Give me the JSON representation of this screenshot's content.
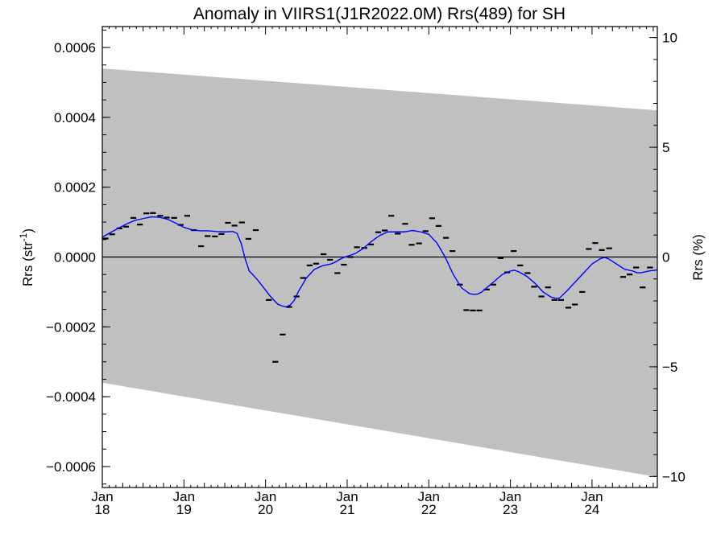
{
  "chart_data": {
    "type": "line",
    "title": "Anomaly in VIIRS1(J1R2022.0M) Rrs(489) for SH",
    "ylabel_left": "Rrs (str",
    "ylabel_left_sup": "-1",
    "ylabel_left_close": ")",
    "ylabel_right": "Rrs (%)",
    "ylim_left": [
      -0.00066,
      0.00066
    ],
    "ylim_right": [
      -10.5,
      10.5
    ],
    "xlim": [
      2018.0,
      2024.8
    ],
    "left_ticks": [
      {
        "value": 0.0006,
        "label": "0.0006"
      },
      {
        "value": 0.0004,
        "label": "0.0004"
      },
      {
        "value": 0.0002,
        "label": "0.0002"
      },
      {
        "value": 0.0,
        "label": "0.0000"
      },
      {
        "value": -0.0002,
        "label": "−0.0002"
      },
      {
        "value": -0.0004,
        "label": "−0.0004"
      },
      {
        "value": -0.0006,
        "label": "−0.0006"
      }
    ],
    "right_ticks": [
      {
        "value": 10,
        "label": "10"
      },
      {
        "value": 5,
        "label": "5"
      },
      {
        "value": 0,
        "label": "0"
      },
      {
        "value": -5,
        "label": "−5"
      },
      {
        "value": -10,
        "label": "−10"
      }
    ],
    "x_ticks": [
      {
        "value": 2018,
        "month": "Jan",
        "year": "18"
      },
      {
        "value": 2019,
        "month": "Jan",
        "year": "19"
      },
      {
        "value": 2020,
        "month": "Jan",
        "year": "20"
      },
      {
        "value": 2021,
        "month": "Jan",
        "year": "21"
      },
      {
        "value": 2022,
        "month": "Jan",
        "year": "22"
      },
      {
        "value": 2023,
        "month": "Jan",
        "year": "23"
      },
      {
        "value": 2024,
        "month": "Jan",
        "year": "24"
      }
    ],
    "band": {
      "color": "#c0c0c0",
      "upper": [
        [
          2018.0,
          0.00054
        ],
        [
          2024.8,
          0.00042
        ]
      ],
      "lower": [
        [
          2018.0,
          -0.00036
        ],
        [
          2024.8,
          -0.00063
        ]
      ]
    },
    "zero_line_color": "#000000",
    "series": [
      {
        "kind": "monthly",
        "color": "#000000",
        "points": [
          [
            2018.04,
            5.3e-05
          ],
          [
            2018.12,
            6.5e-05
          ],
          [
            2018.21,
            8.2e-05
          ],
          [
            2018.29,
            8.7e-05
          ],
          [
            2018.38,
            0.000112
          ],
          [
            2018.46,
            9.3e-05
          ],
          [
            2018.54,
            0.000125
          ],
          [
            2018.62,
            0.000126
          ],
          [
            2018.71,
            0.000118
          ],
          [
            2018.79,
            0.000113
          ],
          [
            2018.88,
            0.000112
          ],
          [
            2018.96,
            9.2e-05
          ],
          [
            2019.04,
            0.000118
          ],
          [
            2019.12,
            7.7e-05
          ],
          [
            2019.21,
            3.1e-05
          ],
          [
            2019.29,
            6e-05
          ],
          [
            2019.38,
            5.9e-05
          ],
          [
            2019.46,
            6.6e-05
          ],
          [
            2019.54,
            9.8e-05
          ],
          [
            2019.62,
            9e-05
          ],
          [
            2019.71,
            9.9e-05
          ],
          [
            2019.79,
            5.2e-05
          ],
          [
            2019.88,
            7.7e-05
          ],
          [
            2020.04,
            -0.000123
          ],
          [
            2020.12,
            -0.0003
          ],
          [
            2020.21,
            -0.000222
          ],
          [
            2020.29,
            -0.000143
          ],
          [
            2020.38,
            -0.000113
          ],
          [
            2020.46,
            -6e-05
          ],
          [
            2020.54,
            -2.4e-05
          ],
          [
            2020.62,
            -1.9e-05
          ],
          [
            2020.71,
            8e-06
          ],
          [
            2020.79,
            -8e-06
          ],
          [
            2020.88,
            -4.6e-05
          ],
          [
            2020.96,
            -2.2e-05
          ],
          [
            2021.04,
            0.0
          ],
          [
            2021.12,
            2.8e-05
          ],
          [
            2021.21,
            2.6e-05
          ],
          [
            2021.29,
            3.6e-05
          ],
          [
            2021.38,
            7.1e-05
          ],
          [
            2021.46,
            7.6e-05
          ],
          [
            2021.54,
            0.000118
          ],
          [
            2021.62,
            6.7e-05
          ],
          [
            2021.71,
            9.5e-05
          ],
          [
            2021.79,
            3.5e-05
          ],
          [
            2021.88,
            3.9e-05
          ],
          [
            2021.96,
            7.4e-05
          ],
          [
            2022.04,
            0.000111
          ],
          [
            2022.12,
            8.9e-05
          ],
          [
            2022.21,
            5.5e-05
          ],
          [
            2022.29,
            1.7e-05
          ],
          [
            2022.38,
            -7.9e-05
          ],
          [
            2022.46,
            -0.000152
          ],
          [
            2022.54,
            -0.000153
          ],
          [
            2022.62,
            -0.000153
          ],
          [
            2022.71,
            -9.3e-05
          ],
          [
            2022.79,
            -7.9e-05
          ],
          [
            2022.88,
            -3e-06
          ],
          [
            2022.96,
            -4.4e-05
          ],
          [
            2023.04,
            1.7e-05
          ],
          [
            2023.12,
            -2.4e-05
          ],
          [
            2023.21,
            -4.6e-05
          ],
          [
            2023.29,
            -8.5e-05
          ],
          [
            2023.38,
            -0.000113
          ],
          [
            2023.46,
            -8.7e-05
          ],
          [
            2023.54,
            -0.000123
          ],
          [
            2023.62,
            -0.000123
          ],
          [
            2023.71,
            -0.000145
          ],
          [
            2023.79,
            -0.000136
          ],
          [
            2023.88,
            -0.0001
          ],
          [
            2023.96,
            2.3e-05
          ],
          [
            2024.04,
            4e-05
          ],
          [
            2024.12,
            2e-05
          ],
          [
            2024.21,
            2.5e-05
          ],
          [
            2024.38,
            -5.7e-05
          ],
          [
            2024.46,
            -5e-05
          ],
          [
            2024.54,
            -3e-05
          ],
          [
            2024.62,
            -8.7e-05
          ],
          [
            2024.71,
            -3e-05
          ]
        ]
      },
      {
        "kind": "smoothed",
        "color": "#0000ff",
        "points": [
          [
            2018.0,
            5.7e-05
          ],
          [
            2018.1,
            7e-05
          ],
          [
            2018.2,
            8.3e-05
          ],
          [
            2018.3,
            9.5e-05
          ],
          [
            2018.4,
            0.000105
          ],
          [
            2018.5,
            0.00011
          ],
          [
            2018.6,
            0.000115
          ],
          [
            2018.7,
            0.000114
          ],
          [
            2018.8,
            0.000108
          ],
          [
            2018.9,
            9.7e-05
          ],
          [
            2019.0,
            8.5e-05
          ],
          [
            2019.1,
            7.8e-05
          ],
          [
            2019.2,
            7.5e-05
          ],
          [
            2019.3,
            7.5e-05
          ],
          [
            2019.4,
            7.3e-05
          ],
          [
            2019.5,
            7.2e-05
          ],
          [
            2019.6,
            7.3e-05
          ],
          [
            2019.65,
            6.8e-05
          ],
          [
            2019.7,
            4e-05
          ],
          [
            2019.75,
            -5e-06
          ],
          [
            2019.8,
            -4e-05
          ],
          [
            2019.85,
            -5.2e-05
          ],
          [
            2019.9,
            -6.5e-05
          ],
          [
            2019.95,
            -8e-05
          ],
          [
            2020.0,
            -9.5e-05
          ],
          [
            2020.05,
            -0.00011
          ],
          [
            2020.1,
            -0.000123
          ],
          [
            2020.15,
            -0.000135
          ],
          [
            2020.2,
            -0.00014
          ],
          [
            2020.25,
            -0.000143
          ],
          [
            2020.3,
            -0.000138
          ],
          [
            2020.35,
            -0.000125
          ],
          [
            2020.4,
            -0.0001
          ],
          [
            2020.5,
            -6e-05
          ],
          [
            2020.6,
            -3.5e-05
          ],
          [
            2020.7,
            -2.5e-05
          ],
          [
            2020.8,
            -2e-05
          ],
          [
            2020.85,
            -1.5e-05
          ],
          [
            2020.9,
            -8e-06
          ],
          [
            2020.95,
            -2e-06
          ],
          [
            2021.0,
            2e-06
          ],
          [
            2021.1,
            1e-05
          ],
          [
            2021.2,
            2.5e-05
          ],
          [
            2021.3,
            4.5e-05
          ],
          [
            2021.4,
            6.2e-05
          ],
          [
            2021.5,
            7.2e-05
          ],
          [
            2021.6,
            7.2e-05
          ],
          [
            2021.7,
            7.2e-05
          ],
          [
            2021.8,
            7.6e-05
          ],
          [
            2021.9,
            7.2e-05
          ],
          [
            2022.0,
            6.5e-05
          ],
          [
            2022.1,
            4e-05
          ],
          [
            2022.2,
            0.0
          ],
          [
            2022.3,
            -5e-05
          ],
          [
            2022.4,
            -8.8e-05
          ],
          [
            2022.5,
            -0.000105
          ],
          [
            2022.55,
            -0.000107
          ],
          [
            2022.6,
            -0.000106
          ],
          [
            2022.65,
            -0.0001
          ],
          [
            2022.7,
            -9e-05
          ],
          [
            2022.8,
            -7e-05
          ],
          [
            2022.9,
            -5e-05
          ],
          [
            2023.0,
            -4e-05
          ],
          [
            2023.05,
            -3.8e-05
          ],
          [
            2023.1,
            -4.2e-05
          ],
          [
            2023.2,
            -5.5e-05
          ],
          [
            2023.3,
            -7.5e-05
          ],
          [
            2023.4,
            -0.0001
          ],
          [
            2023.5,
            -0.000115
          ],
          [
            2023.55,
            -0.000118
          ],
          [
            2023.6,
            -0.000118
          ],
          [
            2023.7,
            -9.5e-05
          ],
          [
            2023.8,
            -7e-05
          ],
          [
            2023.9,
            -4.5e-05
          ],
          [
            2024.0,
            -2e-05
          ],
          [
            2024.1,
            -5e-06
          ],
          [
            2024.15,
            -1e-06
          ],
          [
            2024.2,
            -5e-06
          ],
          [
            2024.3,
            -2e-05
          ],
          [
            2024.4,
            -3.5e-05
          ],
          [
            2024.5,
            -4e-05
          ],
          [
            2024.55,
            -4.5e-05
          ],
          [
            2024.6,
            -4.5e-05
          ],
          [
            2024.7,
            -4e-05
          ],
          [
            2024.8,
            -3.7e-05
          ]
        ]
      }
    ]
  }
}
